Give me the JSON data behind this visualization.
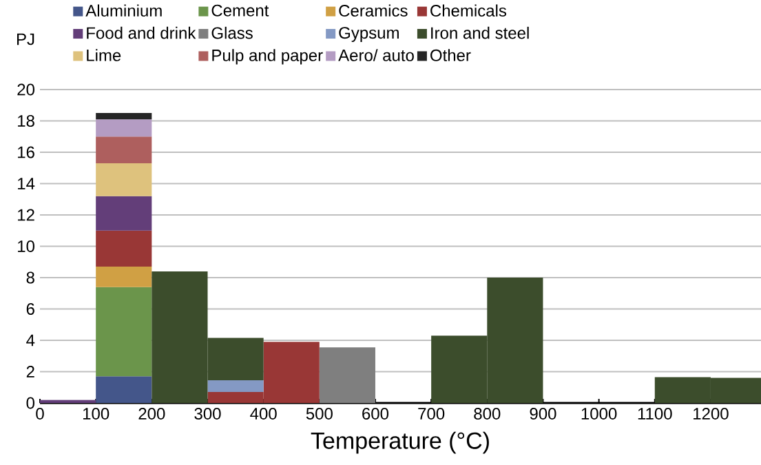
{
  "chart_data": {
    "type": "bar",
    "stacked": true,
    "xlabel": "Temperature (°C)",
    "ylabel": "PJ",
    "x": [
      50,
      150,
      250,
      350,
      450,
      550,
      650,
      750,
      850,
      950,
      1050,
      1150,
      1250
    ],
    "series": [
      {
        "name": "Aluminium",
        "color": "#44568a",
        "values": [
          null,
          1.7,
          null,
          null,
          null,
          null,
          null,
          null,
          null,
          null,
          null,
          null,
          null
        ]
      },
      {
        "name": "Cement",
        "color": "#6b954b",
        "values": [
          null,
          5.7,
          null,
          null,
          null,
          null,
          null,
          null,
          null,
          null,
          null,
          null,
          null
        ]
      },
      {
        "name": "Ceramics",
        "color": "#d0a044",
        "values": [
          null,
          1.3,
          null,
          null,
          null,
          null,
          null,
          null,
          null,
          null,
          null,
          null,
          null
        ]
      },
      {
        "name": "Chemicals",
        "color": "#993736",
        "values": [
          null,
          2.3,
          null,
          0.7,
          3.9,
          null,
          null,
          null,
          null,
          null,
          null,
          null,
          null
        ]
      },
      {
        "name": "Food and drink",
        "color": "#633e79",
        "values": [
          0.2,
          2.2,
          null,
          null,
          null,
          null,
          null,
          null,
          null,
          null,
          null,
          null,
          null
        ]
      },
      {
        "name": "Glass",
        "color": "#7f7f7f",
        "values": [
          null,
          null,
          null,
          null,
          null,
          3.55,
          null,
          null,
          null,
          null,
          null,
          null,
          null
        ]
      },
      {
        "name": "Gypsum",
        "color": "#8499c4",
        "values": [
          null,
          null,
          null,
          0.75,
          null,
          null,
          null,
          null,
          null,
          null,
          null,
          null,
          null
        ]
      },
      {
        "name": "Iron and steel",
        "color": "#3c4d2c",
        "values": [
          null,
          null,
          8.4,
          2.7,
          null,
          null,
          null,
          4.3,
          8.0,
          null,
          null,
          1.65,
          1.6
        ]
      },
      {
        "name": "Lime",
        "color": "#dec27d",
        "values": [
          null,
          2.1,
          null,
          null,
          null,
          null,
          null,
          null,
          null,
          null,
          null,
          null,
          null
        ]
      },
      {
        "name": "Pulp and paper",
        "color": "#ae5f5e",
        "values": [
          null,
          1.7,
          null,
          null,
          null,
          null,
          null,
          null,
          null,
          null,
          null,
          null,
          null
        ]
      },
      {
        "name": "Aero/ auto",
        "color": "#b49cc3",
        "values": [
          null,
          1.1,
          null,
          null,
          null,
          null,
          null,
          null,
          null,
          null,
          null,
          null,
          null
        ]
      },
      {
        "name": "Other",
        "color": "#262626",
        "values": [
          null,
          0.4,
          null,
          null,
          null,
          null,
          null,
          null,
          null,
          null,
          null,
          null,
          null
        ]
      }
    ],
    "xlim": [
      0,
      1290
    ],
    "ylim": [
      0,
      20
    ],
    "xticks": [
      0,
      100,
      200,
      300,
      400,
      500,
      600,
      700,
      800,
      900,
      1000,
      1100,
      1200
    ],
    "yticks": [
      0,
      2,
      4,
      6,
      8,
      10,
      12,
      14,
      16,
      18,
      20
    ],
    "grid": "y",
    "legend": "top"
  }
}
